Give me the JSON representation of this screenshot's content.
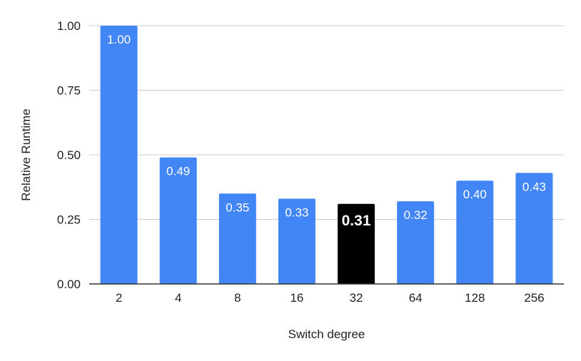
{
  "chart_data": {
    "type": "bar",
    "xlabel": "Switch degree",
    "ylabel": "Relative Runtime",
    "categories": [
      "2",
      "4",
      "8",
      "16",
      "32",
      "64",
      "128",
      "256"
    ],
    "values": [
      1.0,
      0.49,
      0.35,
      0.33,
      0.31,
      0.32,
      0.4,
      0.43
    ],
    "data_labels": [
      "1.00",
      "0.49",
      "0.35",
      "0.33",
      "0.31",
      "0.32",
      "0.40",
      "0.43"
    ],
    "highlight_category": "32",
    "ylim": [
      0,
      1
    ],
    "yticks": [
      0,
      0.25,
      0.5,
      0.75,
      1.0
    ],
    "ytick_labels": [
      "0.00",
      "0.25",
      "0.50",
      "0.75",
      "1.00"
    ],
    "grid": true,
    "legend": "none",
    "colors": {
      "bar": "#4285f4",
      "highlight": "#000000",
      "grid": "#cccccc",
      "axis": "#333333"
    }
  }
}
